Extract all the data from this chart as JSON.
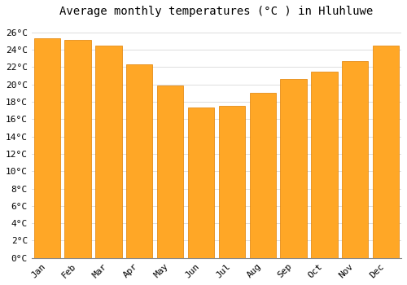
{
  "title": "Average monthly temperatures (°C ) in Hluhluwe",
  "months": [
    "Jan",
    "Feb",
    "Mar",
    "Apr",
    "May",
    "Jun",
    "Jul",
    "Aug",
    "Sep",
    "Oct",
    "Nov",
    "Dec"
  ],
  "values": [
    25.3,
    25.1,
    24.5,
    22.3,
    19.9,
    17.3,
    17.5,
    19.0,
    20.6,
    21.5,
    22.7,
    24.5
  ],
  "bar_color": "#FFA726",
  "bar_edge_color": "#E08000",
  "background_color": "#FFFFFF",
  "grid_color": "#DDDDDD",
  "ylim": [
    0,
    27
  ],
  "yticks": [
    0,
    2,
    4,
    6,
    8,
    10,
    12,
    14,
    16,
    18,
    20,
    22,
    24,
    26
  ],
  "title_fontsize": 10,
  "tick_fontsize": 8,
  "font_family": "monospace"
}
